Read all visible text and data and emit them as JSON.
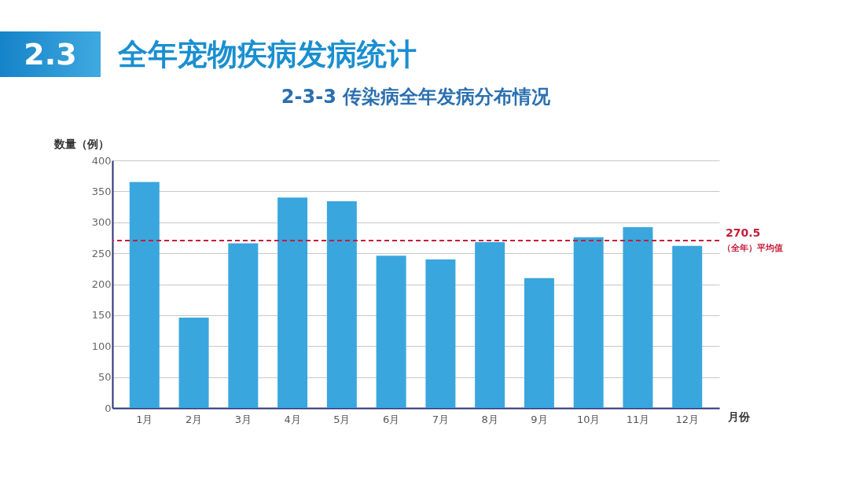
{
  "chart_data": {
    "type": "bar",
    "title": "全年宠物疾病发病统计",
    "subtitle": "2-3-3 传染病全年发病分布情况",
    "xlabel": "月份",
    "ylabel": "数量（例）",
    "annotations": [
      "2.3"
    ],
    "categories": [
      "1月",
      "2月",
      "3月",
      "4月",
      "5月",
      "6月",
      "7月",
      "8月",
      "9月",
      "10月",
      "11月",
      "12月"
    ],
    "values": [
      365,
      146,
      266,
      340,
      334,
      246,
      240,
      268,
      210,
      276,
      292,
      262
    ],
    "color": "#3aa6de",
    "ylim": [
      0,
      400
    ],
    "yticks": [
      0,
      50,
      100,
      150,
      200,
      250,
      300,
      350,
      400
    ],
    "grid": "y",
    "ref_lines": [
      {
        "axis": "y",
        "value": 270.5,
        "label": "270.5\n（全年）平均值",
        "color": "#c41e3a",
        "line_style": "dashed"
      }
    ]
  }
}
